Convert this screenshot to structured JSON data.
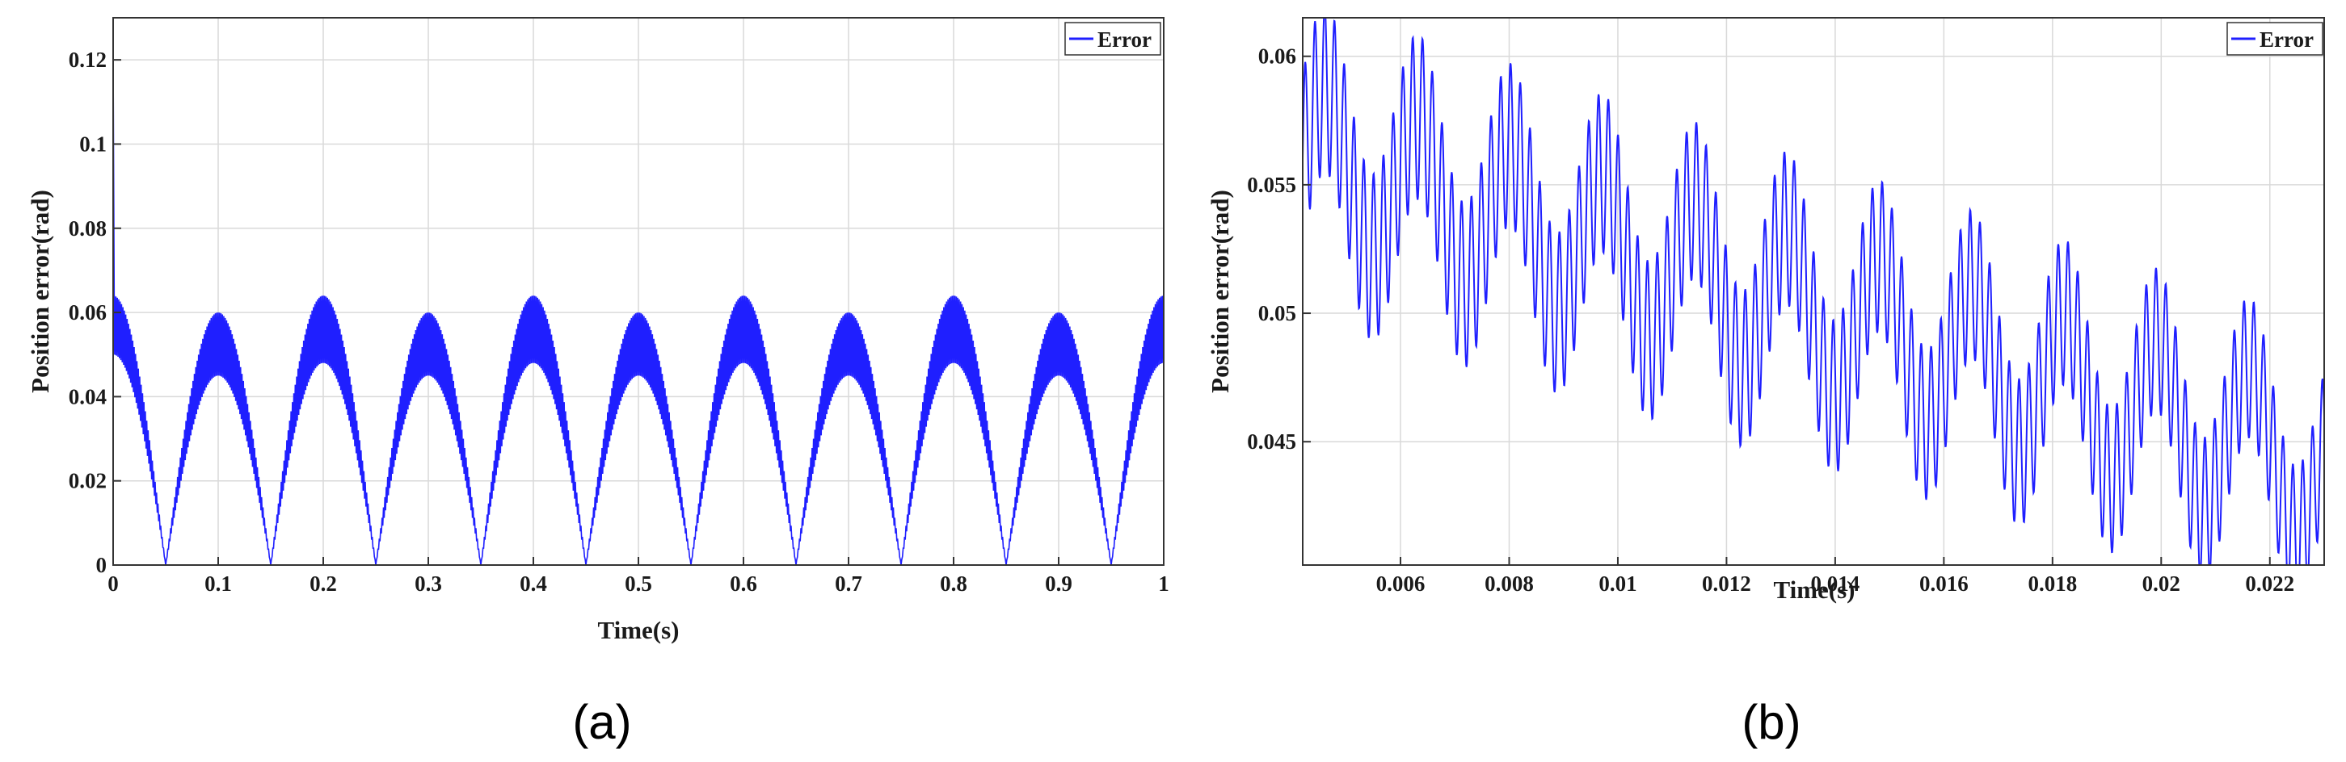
{
  "chart_data": [
    {
      "type": "line",
      "panel_label": "(a)",
      "xlabel": "Time(s)",
      "ylabel": "Position error(rad)",
      "xlim": [
        0,
        1
      ],
      "ylim": [
        0,
        0.13
      ],
      "xticks": [
        0,
        0.1,
        0.2,
        0.3,
        0.4,
        0.5,
        0.6,
        0.7,
        0.8,
        0.9,
        1
      ],
      "xtick_labels": [
        "0",
        "0.1",
        "0.2",
        "0.3",
        "0.4",
        "0.5",
        "0.6",
        "0.7",
        "0.8",
        "0.9",
        "1"
      ],
      "yticks": [
        0,
        0.02,
        0.04,
        0.06,
        0.08,
        0.1,
        0.12
      ],
      "ytick_labels": [
        "0",
        "0.02",
        "0.04",
        "0.06",
        "0.08",
        "0.1",
        "0.12"
      ],
      "grid": true,
      "legend": {
        "position": "top-right",
        "entries": [
          "Error"
        ]
      },
      "series": [
        {
          "name": "Error",
          "color": "#1f1fff",
          "description_points": {
            "initial_spike": [
              0,
              0.121
            ],
            "zero_crossings": [
              0.05,
              0.15,
              0.25,
              0.35,
              0.45,
              0.55,
              0.65,
              0.75,
              0.85,
              0.95
            ],
            "peak_times": [
              0.1,
              0.2,
              0.3,
              0.4,
              0.5,
              0.6,
              0.7,
              0.8,
              0.9,
              1.0
            ],
            "peak_upper": [
              0.06,
              0.064,
              0.06,
              0.064,
              0.06,
              0.064,
              0.06,
              0.064,
              0.06,
              0.064
            ],
            "peak_lower": [
              0.045,
              0.048,
              0.045,
              0.048,
              0.045,
              0.048,
              0.045,
              0.048,
              0.045,
              0.048
            ]
          }
        }
      ]
    },
    {
      "type": "line",
      "panel_label": "(b)",
      "xlabel": "Time(s)",
      "ylabel": "Position error(rad)",
      "xlim": [
        0.0042,
        0.023
      ],
      "ylim": [
        0.0402,
        0.0615
      ],
      "xticks": [
        0.006,
        0.008,
        0.01,
        0.012,
        0.014,
        0.016,
        0.018,
        0.02,
        0.022
      ],
      "xtick_labels": [
        "0.006",
        "0.008",
        "0.01",
        "0.012",
        "0.014",
        "0.016",
        "0.018",
        "0.02",
        "0.022"
      ],
      "yticks": [
        0.045,
        0.05,
        0.055,
        0.06
      ],
      "ytick_labels": [
        "0.045",
        "0.05",
        "0.055",
        "0.06"
      ],
      "grid": true,
      "legend": {
        "position": "top-right",
        "entries": [
          "Error"
        ]
      },
      "series": [
        {
          "name": "Error",
          "color": "#1f1fff",
          "description_points": {
            "trend_start": [
              0.0042,
              0.056
            ],
            "trend_end": [
              0.023,
              0.044
            ],
            "oscillation_amplitude_start": 0.0055,
            "oscillation_amplitude_end": 0.0045,
            "fast_period": 0.00018,
            "slow_period": 0.0017
          }
        }
      ]
    }
  ]
}
